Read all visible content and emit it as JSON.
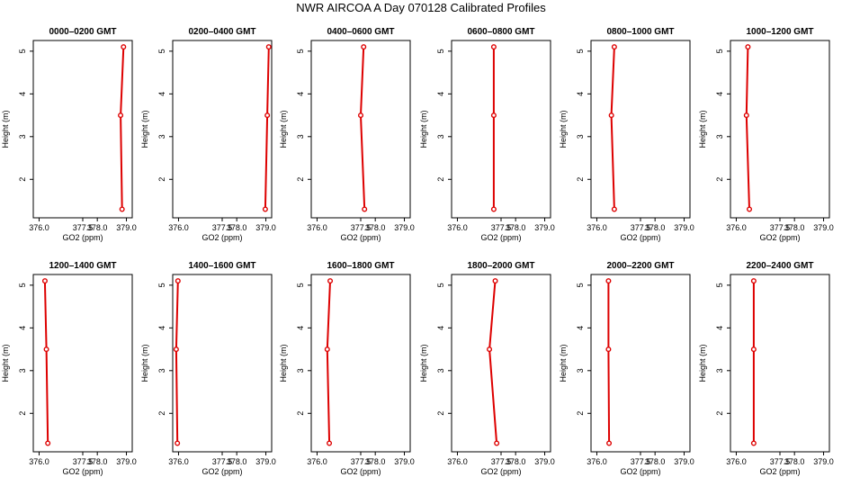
{
  "title": "NWR AIRCOA A  Day 070128  Calibrated Profiles",
  "colors": {
    "series": "#dd0000",
    "axis": "#000000"
  },
  "chart_data": [
    {
      "type": "line",
      "title": "0000–0200 GMT",
      "xlabel": "GO2 (ppm)",
      "ylabel": "Height (m)",
      "xlim": [
        375.8,
        379.2
      ],
      "ylim": [
        1.1,
        5.25
      ],
      "xticks": [
        "376.0",
        "377.5",
        "378.0",
        "379.0"
      ],
      "xtick_values": [
        376.0,
        377.5,
        378.0,
        379.0
      ],
      "yticks": [
        "2",
        "3",
        "4",
        "5"
      ],
      "ytick_values": [
        2,
        3,
        4,
        5
      ],
      "grid": false,
      "series": [
        {
          "x": [
            378.9,
            378.8,
            378.85
          ],
          "y": [
            5.1,
            3.5,
            1.3
          ]
        }
      ]
    },
    {
      "type": "line",
      "title": "0200–0400 GMT",
      "xlabel": "GO2 (ppm)",
      "ylabel": "Height (m)",
      "xlim": [
        375.8,
        379.2
      ],
      "ylim": [
        1.1,
        5.25
      ],
      "xticks": [
        "376.0",
        "377.5",
        "378.0",
        "379.0"
      ],
      "xtick_values": [
        376.0,
        377.5,
        378.0,
        379.0
      ],
      "yticks": [
        "2",
        "3",
        "4",
        "5"
      ],
      "ytick_values": [
        2,
        3,
        4,
        5
      ],
      "grid": false,
      "series": [
        {
          "x": [
            379.1,
            379.05,
            378.98
          ],
          "y": [
            5.1,
            3.5,
            1.3
          ]
        }
      ]
    },
    {
      "type": "line",
      "title": "0400–0600 GMT",
      "xlabel": "GO2 (ppm)",
      "ylabel": "Height (m)",
      "xlim": [
        375.8,
        379.2
      ],
      "ylim": [
        1.1,
        5.25
      ],
      "xticks": [
        "376.0",
        "377.5",
        "378.0",
        "379.0"
      ],
      "xtick_values": [
        376.0,
        377.5,
        378.0,
        379.0
      ],
      "yticks": [
        "2",
        "3",
        "4",
        "5"
      ],
      "ytick_values": [
        2,
        3,
        4,
        5
      ],
      "grid": false,
      "series": [
        {
          "x": [
            377.6,
            377.5,
            377.63
          ],
          "y": [
            5.1,
            3.5,
            1.3
          ]
        }
      ]
    },
    {
      "type": "line",
      "title": "0600–0800 GMT",
      "xlabel": "GO2 (ppm)",
      "ylabel": "Height (m)",
      "xlim": [
        375.8,
        379.2
      ],
      "ylim": [
        1.1,
        5.25
      ],
      "xticks": [
        "376.0",
        "377.5",
        "378.0",
        "379.0"
      ],
      "xtick_values": [
        376.0,
        377.5,
        378.0,
        379.0
      ],
      "yticks": [
        "2",
        "3",
        "4",
        "5"
      ],
      "ytick_values": [
        2,
        3,
        4,
        5
      ],
      "grid": false,
      "series": [
        {
          "x": [
            377.25,
            377.25,
            377.25
          ],
          "y": [
            5.1,
            3.5,
            1.3
          ]
        }
      ]
    },
    {
      "type": "line",
      "title": "0800–1000 GMT",
      "xlabel": "GO2 (ppm)",
      "ylabel": "Height (m)",
      "xlim": [
        375.8,
        379.2
      ],
      "ylim": [
        1.1,
        5.25
      ],
      "xticks": [
        "376.0",
        "377.5",
        "378.0",
        "379.0"
      ],
      "xtick_values": [
        376.0,
        377.5,
        378.0,
        379.0
      ],
      "yticks": [
        "2",
        "3",
        "4",
        "5"
      ],
      "ytick_values": [
        2,
        3,
        4,
        5
      ],
      "grid": false,
      "series": [
        {
          "x": [
            376.6,
            376.5,
            376.6
          ],
          "y": [
            5.1,
            3.5,
            1.3
          ]
        }
      ]
    },
    {
      "type": "line",
      "title": "1000–1200 GMT",
      "xlabel": "GO2 (ppm)",
      "ylabel": "Height (m)",
      "xlim": [
        375.8,
        379.2
      ],
      "ylim": [
        1.1,
        5.25
      ],
      "xticks": [
        "376.0",
        "377.5",
        "378.0",
        "379.0"
      ],
      "xtick_values": [
        376.0,
        377.5,
        378.0,
        379.0
      ],
      "yticks": [
        "2",
        "3",
        "4",
        "5"
      ],
      "ytick_values": [
        2,
        3,
        4,
        5
      ],
      "grid": false,
      "series": [
        {
          "x": [
            376.4,
            376.35,
            376.45
          ],
          "y": [
            5.1,
            3.5,
            1.3
          ]
        }
      ]
    },
    {
      "type": "line",
      "title": "1200–1400 GMT",
      "xlabel": "GO2 (ppm)",
      "ylabel": "Height (m)",
      "xlim": [
        375.8,
        379.2
      ],
      "ylim": [
        1.1,
        5.25
      ],
      "xticks": [
        "376.0",
        "377.5",
        "378.0",
        "379.0"
      ],
      "xtick_values": [
        376.0,
        377.5,
        378.0,
        379.0
      ],
      "yticks": [
        "2",
        "3",
        "4",
        "5"
      ],
      "ytick_values": [
        2,
        3,
        4,
        5
      ],
      "grid": false,
      "series": [
        {
          "x": [
            376.2,
            376.25,
            376.3
          ],
          "y": [
            5.1,
            3.5,
            1.3
          ]
        }
      ]
    },
    {
      "type": "line",
      "title": "1400–1600 GMT",
      "xlabel": "GO2 (ppm)",
      "ylabel": "Height (m)",
      "xlim": [
        375.8,
        379.2
      ],
      "ylim": [
        1.1,
        5.25
      ],
      "xticks": [
        "376.0",
        "377.5",
        "378.0",
        "379.0"
      ],
      "xtick_values": [
        376.0,
        377.5,
        378.0,
        379.0
      ],
      "yticks": [
        "2",
        "3",
        "4",
        "5"
      ],
      "ytick_values": [
        2,
        3,
        4,
        5
      ],
      "grid": false,
      "series": [
        {
          "x": [
            375.98,
            375.92,
            375.96
          ],
          "y": [
            5.1,
            3.5,
            1.3
          ]
        }
      ]
    },
    {
      "type": "line",
      "title": "1600–1800 GMT",
      "xlabel": "GO2 (ppm)",
      "ylabel": "Height (m)",
      "xlim": [
        375.8,
        379.2
      ],
      "ylim": [
        1.1,
        5.25
      ],
      "xticks": [
        "376.0",
        "377.5",
        "378.0",
        "379.0"
      ],
      "xtick_values": [
        376.0,
        377.5,
        378.0,
        379.0
      ],
      "yticks": [
        "2",
        "3",
        "4",
        "5"
      ],
      "ytick_values": [
        2,
        3,
        4,
        5
      ],
      "grid": false,
      "series": [
        {
          "x": [
            376.45,
            376.35,
            376.42
          ],
          "y": [
            5.1,
            3.5,
            1.3
          ]
        }
      ]
    },
    {
      "type": "line",
      "title": "1800–2000 GMT",
      "xlabel": "GO2 (ppm)",
      "ylabel": "Height (m)",
      "xlim": [
        375.8,
        379.2
      ],
      "ylim": [
        1.1,
        5.25
      ],
      "xticks": [
        "376.0",
        "377.5",
        "378.0",
        "379.0"
      ],
      "xtick_values": [
        376.0,
        377.5,
        378.0,
        379.0
      ],
      "yticks": [
        "2",
        "3",
        "4",
        "5"
      ],
      "ytick_values": [
        2,
        3,
        4,
        5
      ],
      "grid": false,
      "series": [
        {
          "x": [
            377.3,
            377.1,
            377.35
          ],
          "y": [
            5.1,
            3.5,
            1.3
          ]
        }
      ]
    },
    {
      "type": "line",
      "title": "2000–2200 GMT",
      "xlabel": "GO2 (ppm)",
      "ylabel": "Height (m)",
      "xlim": [
        375.8,
        379.2
      ],
      "ylim": [
        1.1,
        5.25
      ],
      "xticks": [
        "376.0",
        "377.5",
        "378.0",
        "379.0"
      ],
      "xtick_values": [
        376.0,
        377.5,
        378.0,
        379.0
      ],
      "yticks": [
        "2",
        "3",
        "4",
        "5"
      ],
      "ytick_values": [
        2,
        3,
        4,
        5
      ],
      "grid": false,
      "series": [
        {
          "x": [
            376.4,
            376.4,
            376.42
          ],
          "y": [
            5.1,
            3.5,
            1.3
          ]
        }
      ]
    },
    {
      "type": "line",
      "title": "2200–2400 GMT",
      "xlabel": "GO2 (ppm)",
      "ylabel": "Height (m)",
      "xlim": [
        375.8,
        379.2
      ],
      "ylim": [
        1.1,
        5.25
      ],
      "xticks": [
        "376.0",
        "377.5",
        "378.0",
        "379.0"
      ],
      "xtick_values": [
        376.0,
        377.5,
        378.0,
        379.0
      ],
      "yticks": [
        "2",
        "3",
        "4",
        "5"
      ],
      "ytick_values": [
        2,
        3,
        4,
        5
      ],
      "grid": false,
      "series": [
        {
          "x": [
            376.6,
            376.6,
            376.6
          ],
          "y": [
            5.1,
            3.5,
            1.3
          ]
        }
      ]
    }
  ]
}
